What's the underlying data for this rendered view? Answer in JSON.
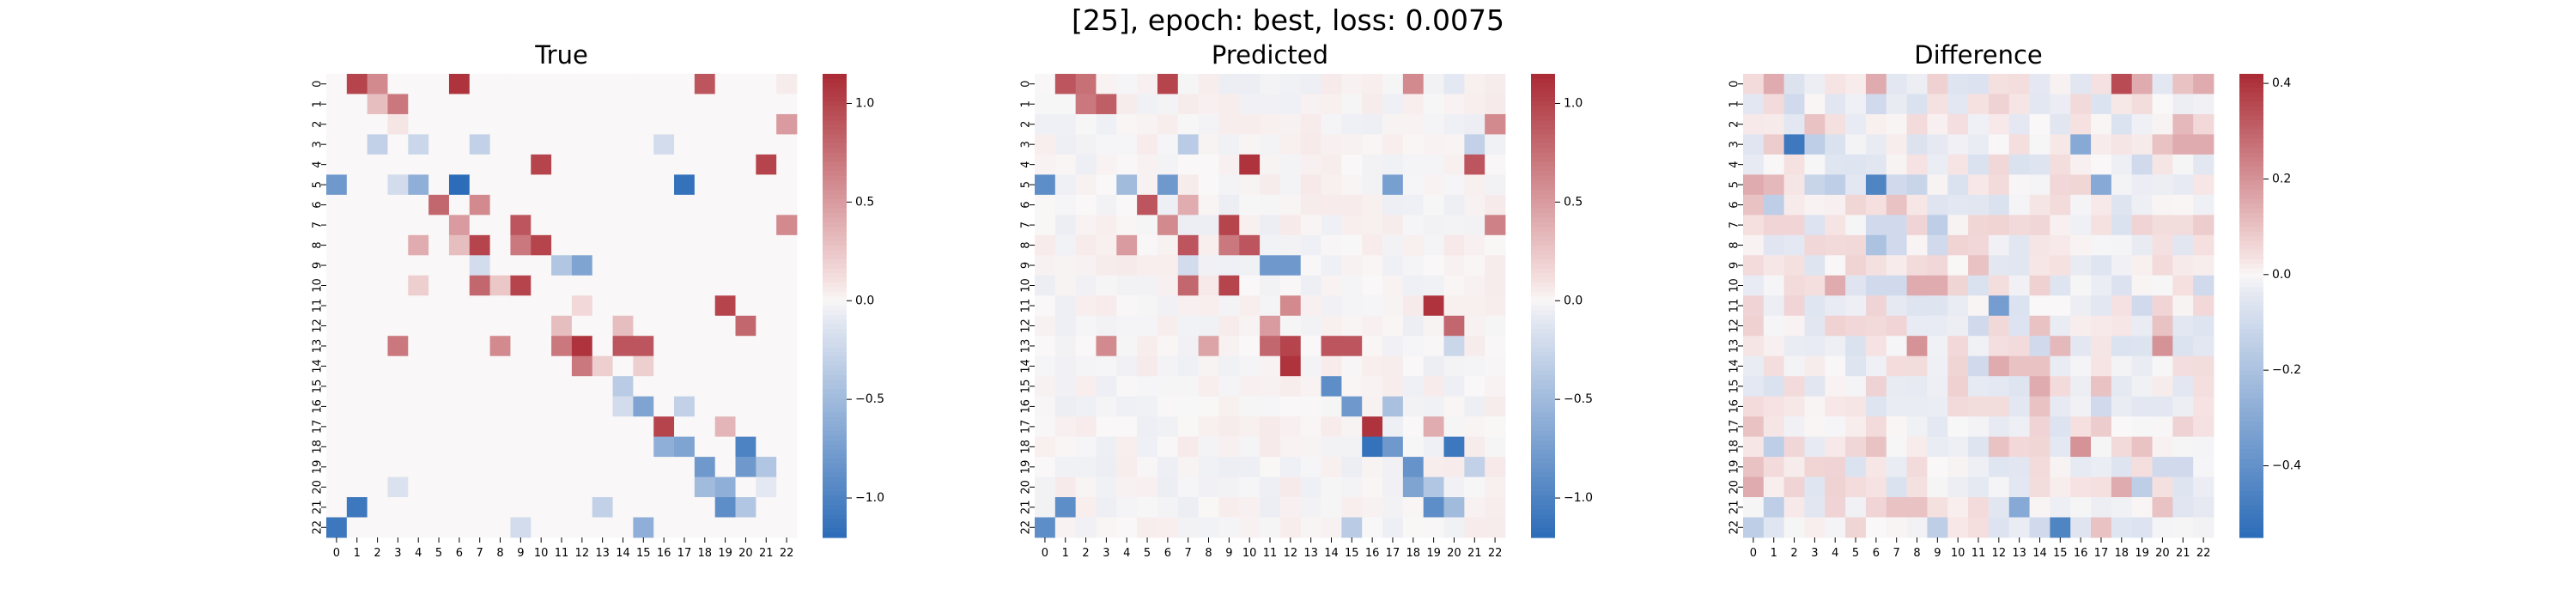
{
  "figure": {
    "suptitle": "[25], epoch: best, loss: 0.0075"
  },
  "chart_data": [
    {
      "type": "heatmap",
      "title": "True",
      "x_ticklabels": [
        "0",
        "1",
        "2",
        "3",
        "4",
        "5",
        "6",
        "7",
        "8",
        "9",
        "10",
        "11",
        "12",
        "13",
        "14",
        "15",
        "16",
        "17",
        "18",
        "19",
        "20",
        "21",
        "22"
      ],
      "y_ticklabels": [
        "0",
        "1",
        "2",
        "3",
        "4",
        "5",
        "6",
        "7",
        "8",
        "9",
        "10",
        "11",
        "12",
        "13",
        "14",
        "15",
        "16",
        "17",
        "18",
        "19",
        "20",
        "21",
        "22"
      ],
      "colormap": "vlag",
      "vmin": -1.2,
      "vmax": 1.15,
      "colorbar_ticks": [
        "1.0",
        "0.5",
        "0.0",
        "−0.5",
        "−1.0"
      ],
      "colorbar_tick_values": [
        1.0,
        0.5,
        0.0,
        -0.5,
        -1.0
      ],
      "cells": [
        [
          0,
          1,
          1.0
        ],
        [
          0,
          2,
          0.6
        ],
        [
          0,
          6,
          1.1
        ],
        [
          0,
          18,
          0.9
        ],
        [
          0,
          22,
          0.05
        ],
        [
          1,
          2,
          0.3
        ],
        [
          1,
          3,
          0.7
        ],
        [
          2,
          3,
          0.08
        ],
        [
          2,
          22,
          0.5
        ],
        [
          3,
          2,
          -0.3
        ],
        [
          3,
          4,
          -0.25
        ],
        [
          3,
          7,
          -0.3
        ],
        [
          3,
          16,
          -0.2
        ],
        [
          4,
          10,
          1.0
        ],
        [
          4,
          21,
          1.0
        ],
        [
          5,
          0,
          -0.8
        ],
        [
          5,
          3,
          -0.2
        ],
        [
          5,
          4,
          -0.6
        ],
        [
          5,
          6,
          -1.2
        ],
        [
          5,
          17,
          -1.15
        ],
        [
          6,
          5,
          0.8
        ],
        [
          6,
          7,
          0.6
        ],
        [
          7,
          6,
          0.5
        ],
        [
          7,
          9,
          0.9
        ],
        [
          7,
          22,
          0.6
        ],
        [
          8,
          4,
          0.4
        ],
        [
          8,
          6,
          0.3
        ],
        [
          8,
          7,
          1.0
        ],
        [
          8,
          9,
          0.7
        ],
        [
          8,
          10,
          1.0
        ],
        [
          9,
          7,
          -0.2
        ],
        [
          9,
          11,
          -0.4
        ],
        [
          9,
          12,
          -0.7
        ],
        [
          10,
          4,
          0.2
        ],
        [
          10,
          7,
          0.8
        ],
        [
          10,
          8,
          0.25
        ],
        [
          10,
          9,
          1.0
        ],
        [
          11,
          12,
          0.15
        ],
        [
          11,
          19,
          1.0
        ],
        [
          12,
          11,
          0.3
        ],
        [
          12,
          14,
          0.3
        ],
        [
          12,
          20,
          0.8
        ],
        [
          13,
          3,
          0.7
        ],
        [
          13,
          8,
          0.6
        ],
        [
          13,
          11,
          0.7
        ],
        [
          13,
          12,
          1.1
        ],
        [
          13,
          14,
          0.9
        ],
        [
          13,
          15,
          0.9
        ],
        [
          14,
          12,
          0.7
        ],
        [
          14,
          13,
          0.2
        ],
        [
          14,
          15,
          0.2
        ],
        [
          15,
          14,
          -0.35
        ],
        [
          16,
          14,
          -0.2
        ],
        [
          16,
          15,
          -0.7
        ],
        [
          16,
          17,
          -0.3
        ],
        [
          17,
          16,
          1.0
        ],
        [
          17,
          19,
          0.35
        ],
        [
          18,
          16,
          -0.6
        ],
        [
          18,
          17,
          -0.7
        ],
        [
          18,
          20,
          -1.0
        ],
        [
          19,
          18,
          -0.8
        ],
        [
          19,
          20,
          -0.8
        ],
        [
          19,
          21,
          -0.4
        ],
        [
          20,
          3,
          -0.15
        ],
        [
          20,
          18,
          -0.5
        ],
        [
          20,
          19,
          -0.6
        ],
        [
          20,
          21,
          -0.1
        ],
        [
          21,
          1,
          -1.1
        ],
        [
          21,
          13,
          -0.3
        ],
        [
          21,
          19,
          -0.9
        ],
        [
          21,
          20,
          -0.4
        ],
        [
          22,
          0,
          -1.1
        ],
        [
          22,
          9,
          -0.2
        ],
        [
          22,
          15,
          -0.6
        ]
      ]
    },
    {
      "type": "heatmap",
      "title": "Predicted",
      "x_ticklabels": [
        "0",
        "1",
        "2",
        "3",
        "4",
        "5",
        "6",
        "7",
        "8",
        "9",
        "10",
        "11",
        "12",
        "13",
        "14",
        "15",
        "16",
        "17",
        "18",
        "19",
        "20",
        "21",
        "22"
      ],
      "y_ticklabels": [
        "0",
        "1",
        "2",
        "3",
        "4",
        "5",
        "6",
        "7",
        "8",
        "9",
        "10",
        "11",
        "12",
        "13",
        "14",
        "15",
        "16",
        "17",
        "18",
        "19",
        "20",
        "21",
        "22"
      ],
      "colormap": "vlag",
      "vmin": -1.2,
      "vmax": 1.15,
      "colorbar_ticks": [
        "1.0",
        "0.5",
        "0.0",
        "−0.5",
        "−1.0"
      ],
      "colorbar_tick_values": [
        1.0,
        0.5,
        0.0,
        -0.5,
        -1.0
      ],
      "background_noise": 0.06,
      "cells": [
        [
          0,
          1,
          0.9
        ],
        [
          0,
          2,
          0.75
        ],
        [
          0,
          6,
          1.0
        ],
        [
          0,
          18,
          0.6
        ],
        [
          0,
          20,
          -0.1
        ],
        [
          0,
          22,
          0.05
        ],
        [
          1,
          2,
          0.7
        ],
        [
          1,
          3,
          0.85
        ],
        [
          2,
          22,
          0.6
        ],
        [
          3,
          7,
          -0.35
        ],
        [
          3,
          21,
          -0.3
        ],
        [
          4,
          10,
          1.1
        ],
        [
          4,
          21,
          0.9
        ],
        [
          5,
          0,
          -0.9
        ],
        [
          5,
          4,
          -0.5
        ],
        [
          5,
          6,
          -0.8
        ],
        [
          5,
          17,
          -0.75
        ],
        [
          6,
          5,
          0.9
        ],
        [
          6,
          7,
          0.4
        ],
        [
          7,
          6,
          0.6
        ],
        [
          7,
          9,
          1.0
        ],
        [
          7,
          22,
          0.65
        ],
        [
          8,
          4,
          0.5
        ],
        [
          8,
          7,
          0.9
        ],
        [
          8,
          9,
          0.7
        ],
        [
          8,
          10,
          0.9
        ],
        [
          9,
          7,
          -0.2
        ],
        [
          9,
          11,
          -0.8
        ],
        [
          9,
          12,
          -0.8
        ],
        [
          10,
          7,
          0.8
        ],
        [
          10,
          9,
          1.0
        ],
        [
          11,
          12,
          0.6
        ],
        [
          11,
          19,
          1.1
        ],
        [
          12,
          11,
          0.5
        ],
        [
          12,
          20,
          0.8
        ],
        [
          13,
          3,
          0.6
        ],
        [
          13,
          8,
          0.45
        ],
        [
          13,
          11,
          0.8
        ],
        [
          13,
          12,
          1.0
        ],
        [
          13,
          14,
          0.9
        ],
        [
          13,
          15,
          0.9
        ],
        [
          13,
          20,
          -0.25
        ],
        [
          14,
          12,
          1.1
        ],
        [
          15,
          14,
          -0.9
        ],
        [
          16,
          15,
          -0.8
        ],
        [
          16,
          17,
          -0.45
        ],
        [
          17,
          16,
          1.1
        ],
        [
          17,
          19,
          0.4
        ],
        [
          18,
          16,
          -1.15
        ],
        [
          18,
          17,
          -0.8
        ],
        [
          18,
          20,
          -1.1
        ],
        [
          19,
          18,
          -0.85
        ],
        [
          19,
          21,
          -0.3
        ],
        [
          20,
          18,
          -0.7
        ],
        [
          20,
          19,
          -0.4
        ],
        [
          21,
          1,
          -0.9
        ],
        [
          21,
          19,
          -0.9
        ],
        [
          21,
          20,
          -0.5
        ],
        [
          22,
          0,
          -0.9
        ],
        [
          22,
          15,
          -0.35
        ]
      ]
    },
    {
      "type": "heatmap",
      "title": "Difference",
      "x_ticklabels": [
        "0",
        "1",
        "2",
        "3",
        "4",
        "5",
        "6",
        "7",
        "8",
        "9",
        "10",
        "11",
        "12",
        "13",
        "14",
        "15",
        "16",
        "17",
        "18",
        "19",
        "20",
        "21",
        "22"
      ],
      "y_ticklabels": [
        "0",
        "1",
        "2",
        "3",
        "4",
        "5",
        "6",
        "7",
        "8",
        "9",
        "10",
        "11",
        "12",
        "13",
        "14",
        "15",
        "16",
        "17",
        "18",
        "19",
        "20",
        "21",
        "22"
      ],
      "colormap": "vlag",
      "vmin": -0.55,
      "vmax": 0.42,
      "colorbar_ticks": [
        "0.4",
        "0.2",
        "0.0",
        "−0.2",
        "−0.4"
      ],
      "colorbar_tick_values": [
        0.4,
        0.2,
        0.0,
        -0.2,
        -0.4
      ],
      "background_noise": 0.07,
      "cells": [
        [
          0,
          1,
          0.15
        ],
        [
          0,
          6,
          0.15
        ],
        [
          0,
          18,
          0.35
        ],
        [
          0,
          19,
          0.15
        ],
        [
          0,
          20,
          -0.05
        ],
        [
          0,
          21,
          0.1
        ],
        [
          0,
          22,
          0.15
        ],
        [
          1,
          2,
          -0.1
        ],
        [
          1,
          6,
          -0.1
        ],
        [
          1,
          10,
          -0.05
        ],
        [
          2,
          2,
          -0.05
        ],
        [
          2,
          3,
          0.1
        ],
        [
          2,
          21,
          0.12
        ],
        [
          3,
          1,
          0.08
        ],
        [
          3,
          2,
          -0.5
        ],
        [
          3,
          3,
          -0.15
        ],
        [
          3,
          16,
          -0.3
        ],
        [
          3,
          20,
          0.1
        ],
        [
          3,
          21,
          0.15
        ],
        [
          3,
          22,
          0.15
        ],
        [
          4,
          19,
          -0.1
        ],
        [
          4,
          22,
          -0.05
        ],
        [
          5,
          0,
          0.15
        ],
        [
          5,
          1,
          0.12
        ],
        [
          5,
          3,
          -0.12
        ],
        [
          5,
          4,
          -0.15
        ],
        [
          5,
          6,
          -0.45
        ],
        [
          5,
          7,
          -0.1
        ],
        [
          5,
          8,
          -0.12
        ],
        [
          5,
          17,
          -0.3
        ],
        [
          6,
          0,
          0.1
        ],
        [
          6,
          1,
          -0.15
        ],
        [
          6,
          7,
          0.1
        ],
        [
          6,
          15,
          0.05
        ],
        [
          7,
          6,
          -0.1
        ],
        [
          7,
          7,
          -0.1
        ],
        [
          7,
          9,
          -0.15
        ],
        [
          7,
          22,
          0.08
        ],
        [
          8,
          6,
          -0.2
        ],
        [
          8,
          7,
          -0.1
        ],
        [
          8,
          9,
          -0.1
        ],
        [
          9,
          0,
          0.05
        ],
        [
          9,
          8,
          0.05
        ],
        [
          9,
          11,
          0.1
        ],
        [
          9,
          12,
          -0.05
        ],
        [
          10,
          4,
          0.15
        ],
        [
          10,
          6,
          -0.1
        ],
        [
          10,
          7,
          -0.1
        ],
        [
          10,
          8,
          0.15
        ],
        [
          10,
          9,
          0.15
        ],
        [
          10,
          22,
          -0.1
        ],
        [
          11,
          12,
          -0.35
        ],
        [
          11,
          19,
          -0.1
        ],
        [
          12,
          11,
          -0.1
        ],
        [
          12,
          14,
          0.1
        ],
        [
          12,
          20,
          0.1
        ],
        [
          13,
          8,
          0.2
        ],
        [
          13,
          14,
          -0.1
        ],
        [
          13,
          15,
          0.12
        ],
        [
          13,
          20,
          0.2
        ],
        [
          14,
          11,
          -0.1
        ],
        [
          14,
          12,
          0.15
        ],
        [
          14,
          13,
          0.1
        ],
        [
          14,
          14,
          0.1
        ],
        [
          15,
          14,
          0.15
        ],
        [
          15,
          17,
          0.1
        ],
        [
          16,
          14,
          0.1
        ],
        [
          16,
          17,
          -0.1
        ],
        [
          17,
          0,
          0.1
        ],
        [
          17,
          17,
          0.08
        ],
        [
          18,
          1,
          -0.15
        ],
        [
          18,
          6,
          0.1
        ],
        [
          18,
          12,
          0.1
        ],
        [
          18,
          16,
          0.2
        ],
        [
          18,
          19,
          0.1
        ],
        [
          19,
          0,
          0.1
        ],
        [
          19,
          14,
          0.05
        ],
        [
          19,
          20,
          -0.1
        ],
        [
          19,
          21,
          -0.1
        ],
        [
          20,
          0,
          0.15
        ],
        [
          20,
          18,
          0.15
        ],
        [
          20,
          19,
          -0.15
        ],
        [
          21,
          1,
          -0.15
        ],
        [
          21,
          7,
          0.1
        ],
        [
          21,
          8,
          0.1
        ],
        [
          21,
          13,
          -0.3
        ],
        [
          21,
          20,
          0.1
        ],
        [
          22,
          0,
          -0.15
        ],
        [
          22,
          9,
          -0.15
        ],
        [
          22,
          14,
          -0.1
        ],
        [
          22,
          15,
          -0.45
        ],
        [
          22,
          17,
          0.1
        ]
      ]
    }
  ]
}
